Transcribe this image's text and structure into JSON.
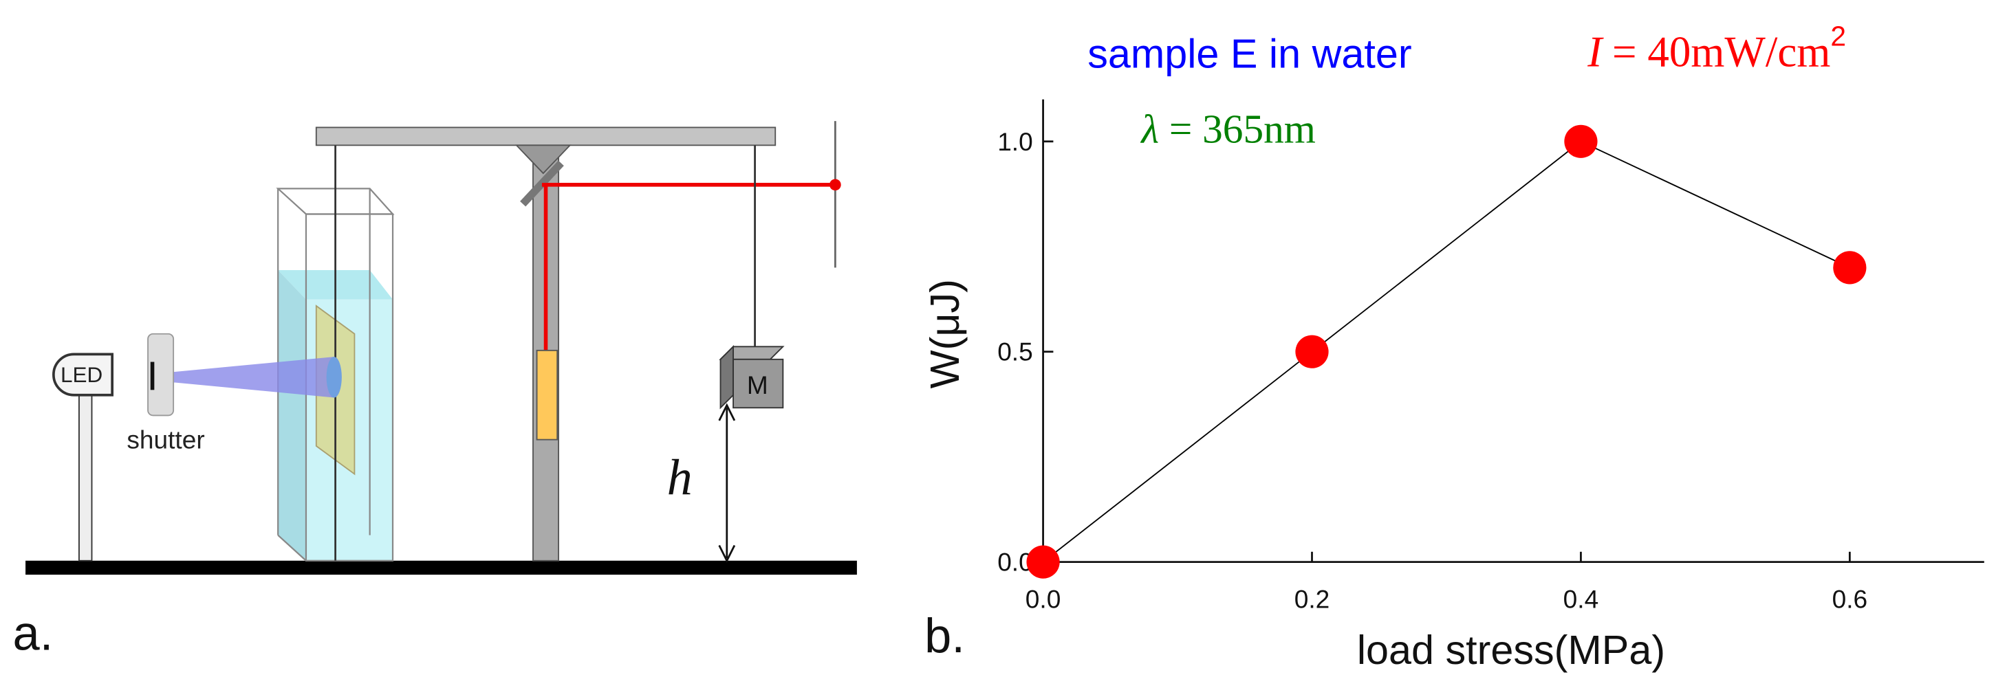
{
  "diagram": {
    "panel_label": "a.",
    "led": "LED",
    "shutter": "shutter",
    "mass": "M",
    "height": "h"
  },
  "chart_data": {
    "type": "line",
    "panel_label": "b.",
    "title": "sample E in water",
    "title_color": "#0000ff",
    "annotations": [
      {
        "parts": [
          "I",
          "= 40mW/cm",
          "2"
        ],
        "color": "#ff0000"
      },
      {
        "parts": [
          "λ",
          "= 365nm"
        ],
        "color": "#008000"
      }
    ],
    "x_label": "load stress(MPa)",
    "y_label": "W(μJ)",
    "x": [
      0,
      0.2,
      0.4,
      0.6
    ],
    "values": [
      0,
      0.5,
      1.0,
      0.7
    ],
    "color": "#ff0000",
    "line_color": "#000000",
    "xlim": [
      0,
      0.7
    ],
    "ylim": [
      0,
      1.1
    ],
    "xticks": [
      {
        "value": 0,
        "label": "0.0"
      },
      0.2,
      0.4,
      0.6
    ],
    "yticks": [
      {
        "value": 0,
        "label": "0.0"
      },
      0.5,
      {
        "value": 1,
        "label": "1.0"
      }
    ]
  }
}
